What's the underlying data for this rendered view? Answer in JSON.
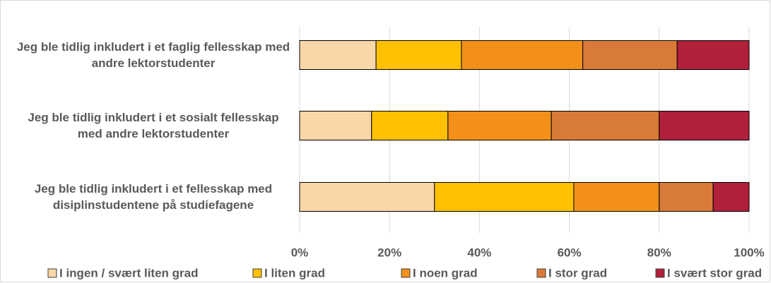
{
  "chart_data": {
    "type": "stacked_barh",
    "categories": [
      "Jeg ble tidlig inkludert i et faglig fellesskap med andre lektorstudenter",
      "Jeg ble tidlig inkludert i et sosialt fellesskap med andre lektorstudenter",
      "Jeg ble tidlig inkludert i et fellesskap med disiplinstudentene på studiefagene"
    ],
    "series": [
      {
        "name": "I ingen / svært liten grad",
        "color": "#fad7a8",
        "values": [
          17,
          16,
          30
        ]
      },
      {
        "name": "I liten grad",
        "color": "#ffc000",
        "values": [
          19,
          17,
          31
        ]
      },
      {
        "name": "I noen grad",
        "color": "#f39019",
        "values": [
          27,
          23,
          19
        ]
      },
      {
        "name": "I stor grad",
        "color": "#d97b38",
        "values": [
          21,
          24,
          12
        ]
      },
      {
        "name": "I svært stor grad",
        "color": "#b0203a",
        "values": [
          16,
          20,
          8
        ]
      }
    ],
    "xlim": [
      0,
      100
    ],
    "xticks": [
      {
        "value": 0,
        "label": "0%"
      },
      {
        "value": 20,
        "label": "20%"
      },
      {
        "value": 40,
        "label": "40%"
      },
      {
        "value": 60,
        "label": "60%"
      },
      {
        "value": 80,
        "label": "80%"
      },
      {
        "value": 100,
        "label": "100%"
      }
    ],
    "grid": true,
    "legend": "bottom"
  }
}
